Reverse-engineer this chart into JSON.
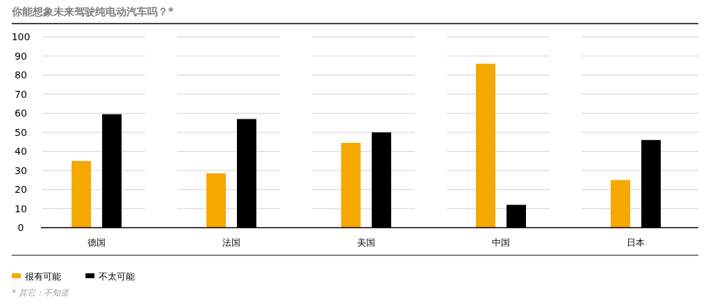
{
  "chart_data": {
    "type": "bar",
    "title": "你能想象未来驾驶纯电动汽车吗？*",
    "categories": [
      "德国",
      "法国",
      "美国",
      "中国",
      "日本"
    ],
    "series": [
      {
        "name": "很有可能",
        "color": "#f5a800",
        "values": [
          35,
          28.5,
          44.5,
          86,
          25
        ]
      },
      {
        "name": "不太可能",
        "color": "#000000",
        "values": [
          59.5,
          57,
          50,
          12,
          46
        ]
      }
    ],
    "ylim": [
      0,
      100
    ],
    "yticks": [
      0,
      10,
      20,
      30,
      40,
      50,
      60,
      70,
      80,
      90,
      100
    ],
    "grid": "y",
    "legend": "bottom left",
    "annotations": [
      "* 其它：不知道"
    ]
  }
}
